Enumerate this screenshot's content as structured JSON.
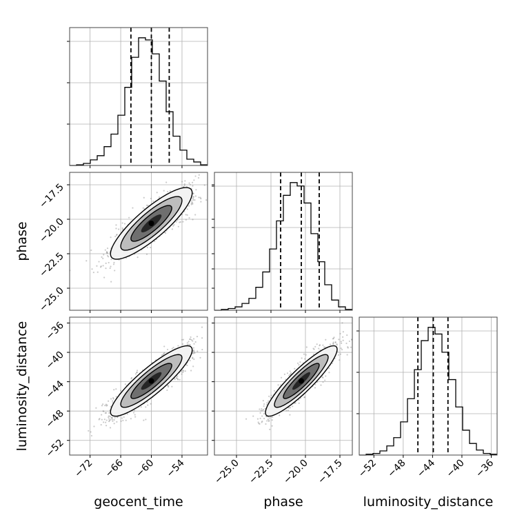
{
  "chart_data": {
    "type": "corner",
    "parameters": [
      "geocent_time",
      "phase",
      "luminosity_distance"
    ],
    "axis_labels": {
      "x": [
        "geocent_time",
        "phase",
        "luminosity_distance"
      ],
      "y": [
        "phase",
        "luminosity_distance"
      ]
    },
    "ranges": {
      "geocent_time": [
        -76,
        -49
      ],
      "phase": [
        -26.6,
        -16.6
      ],
      "luminosity_distance": [
        -54.0,
        -35.2
      ]
    },
    "ticks": {
      "geocent_time": [
        "−72",
        "−66",
        "−60",
        "−54"
      ],
      "phase": [
        "−25.0",
        "−22.5",
        "−20.0",
        "−17.5"
      ],
      "luminosity_distance": [
        "−52",
        "−48",
        "−44",
        "−40",
        "−36"
      ]
    },
    "tick_values": {
      "geocent_time": [
        -72,
        -66,
        -60,
        -54
      ],
      "phase": [
        -25.0,
        -22.5,
        -20.0,
        -17.5
      ],
      "luminosity_distance": [
        -52,
        -48,
        -44,
        -40,
        -36
      ]
    },
    "quantiles": {
      "geocent_time": [
        -64.0,
        -60.0,
        -56.5
      ],
      "phase": [
        -21.8,
        -20.3,
        -19.0
      ],
      "luminosity_distance": [
        -46.0,
        -43.9,
        -41.9
      ]
    },
    "histograms": {
      "geocent_time": {
        "edges": [
          -76,
          -74.65,
          -73.3,
          -71.95,
          -70.6,
          -69.25,
          -67.9,
          -66.55,
          -65.2,
          -63.85,
          -62.5,
          -61.15,
          -59.8,
          -58.45,
          -57.1,
          -55.75,
          -54.4,
          -53.05,
          -51.7,
          -50.35,
          -49
        ],
        "counts": [
          0,
          1,
          3,
          8,
          14,
          27,
          45,
          72,
          112,
          155,
          183,
          180,
          160,
          121,
          77,
          42,
          22,
          9,
          5,
          1
        ]
      },
      "phase": {
        "edges": [
          -26.6,
          -26.1,
          -25.6,
          -25.1,
          -24.6,
          -24.1,
          -23.6,
          -23.1,
          -22.6,
          -22.1,
          -21.6,
          -21.1,
          -20.6,
          -20.1,
          -19.6,
          -19.1,
          -18.6,
          -18.1,
          -17.6,
          -17.1,
          -16.6
        ],
        "counts": [
          0,
          1,
          2,
          4,
          8,
          14,
          27,
          45,
          72,
          105,
          135,
          150,
          146,
          126,
          90,
          57,
          30,
          12,
          4,
          1
        ]
      },
      "luminosity_distance": {
        "edges": [
          -54.0,
          -53.06,
          -52.12,
          -51.18,
          -50.24,
          -49.3,
          -48.36,
          -47.42,
          -46.48,
          -45.54,
          -44.6,
          -43.66,
          -42.72,
          -41.78,
          -40.84,
          -39.9,
          -38.96,
          -38.02,
          -37.08,
          -36.14,
          -35.2
        ],
        "counts": [
          0,
          1,
          2,
          5,
          11,
          21,
          40,
          68,
          103,
          138,
          154,
          146,
          124,
          91,
          58,
          30,
          14,
          6,
          2,
          1
        ]
      }
    },
    "pairs": [
      {
        "x": "geocent_time",
        "y": "phase",
        "mean": [
          -60.0,
          -20.3
        ],
        "sd": [
          4.0,
          1.3
        ],
        "rho": 0.85
      },
      {
        "x": "geocent_time",
        "y": "luminosity_distance",
        "mean": [
          -60.0,
          -43.9
        ],
        "sd": [
          4.0,
          2.4
        ],
        "rho": 0.88
      },
      {
        "x": "phase",
        "y": "luminosity_distance",
        "mean": [
          -20.3,
          -43.9
        ],
        "sd": [
          1.3,
          2.4
        ],
        "rho": 0.9
      }
    ],
    "contour_levels_sigma": [
      0.5,
      1.0,
      1.5,
      2.0
    ],
    "grid": true,
    "legend": "none",
    "colors": {
      "hist": "#000000",
      "quantile": "#000000",
      "points": "#8a8a8a",
      "grid": "#b0b0b0"
    }
  }
}
